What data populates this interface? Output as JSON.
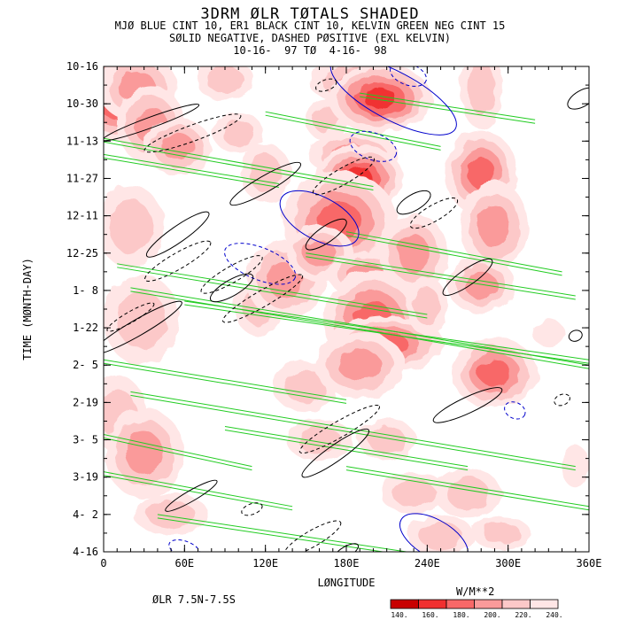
{
  "titles": {
    "line1": "3DRM ØLR TØTALS SHADED",
    "line2": "MJØ BLUE CINT 10, ER1 BLACK CINT 10, KELVIN GREEN NEG CINT 15",
    "line3": "SØLID NEGATIVE, DASHED PØSITIVE (EXL KELVIN)",
    "line4": "10-16-  97 TØ  4-16-  98"
  },
  "footer": {
    "region": "ØLR 7.5N-7.5S",
    "units": "W/M**2"
  },
  "colorbar": {
    "labels": [
      "140.",
      "160.",
      "180.",
      "200.",
      "220.",
      "240."
    ],
    "colors": [
      "#c80000",
      "#f03030",
      "#f86868",
      "#fa9a9a",
      "#fcc8c8",
      "#ffe6e6"
    ]
  },
  "chart_data": {
    "type": "heatmap",
    "title": "3DRM ØLR TØTALS SHADED",
    "xlabel": "LØNGITUDE",
    "ylabel": "TIME (MØNTH-DAY)",
    "x_ticks": [
      "0",
      "60E",
      "120E",
      "180E",
      "240E",
      "300E",
      "360E"
    ],
    "y_ticks": [
      "10-16",
      "10-30",
      "11-13",
      "11-27",
      "12-11",
      "12-25",
      "1- 8",
      "1-22",
      "2- 5",
      "2-19",
      "3- 5",
      "3-19",
      "4- 2",
      "4-16"
    ],
    "xlim": [
      0,
      360
    ],
    "ylim": [
      "10-16-97",
      "4-16-98"
    ],
    "shading_levels": [
      140,
      160,
      180,
      200,
      220,
      240
    ],
    "shading_colors": [
      "#c80000",
      "#f03030",
      "#f86868",
      "#fa9a9a",
      "#fcc8c8",
      "#ffe6e6"
    ],
    "contours": {
      "MJO": {
        "color": "#0000cc",
        "cint": 10
      },
      "ER1": {
        "color": "#000000",
        "cint": 10
      },
      "Kelvin": {
        "color": "#22cc22",
        "cint": 15,
        "sign": "negative"
      }
    },
    "blobs": [
      {
        "lon": 10,
        "day": 12,
        "rx": 10,
        "ry": 10,
        "level": 1
      },
      {
        "lon": 25,
        "day": 8,
        "rx": 14,
        "ry": 12,
        "level": 3
      },
      {
        "lon": 35,
        "day": 22,
        "rx": 12,
        "ry": 14,
        "level": 3
      },
      {
        "lon": 55,
        "day": 30,
        "rx": 12,
        "ry": 10,
        "level": 3
      },
      {
        "lon": 20,
        "day": 60,
        "rx": 16,
        "ry": 20,
        "level": 4
      },
      {
        "lon": 28,
        "day": 95,
        "rx": 18,
        "ry": 22,
        "level": 4
      },
      {
        "lon": 10,
        "day": 130,
        "rx": 14,
        "ry": 18,
        "level": 4
      },
      {
        "lon": 30,
        "day": 145,
        "rx": 14,
        "ry": 16,
        "level": 3
      },
      {
        "lon": 50,
        "day": 168,
        "rx": 18,
        "ry": 10,
        "level": 4
      },
      {
        "lon": 90,
        "day": 5,
        "rx": 14,
        "ry": 10,
        "level": 4
      },
      {
        "lon": 100,
        "day": 25,
        "rx": 12,
        "ry": 10,
        "level": 4
      },
      {
        "lon": 120,
        "day": 40,
        "rx": 12,
        "ry": 14,
        "level": 4
      },
      {
        "lon": 115,
        "day": 90,
        "rx": 12,
        "ry": 14,
        "level": 4
      },
      {
        "lon": 135,
        "day": 80,
        "rx": 14,
        "ry": 14,
        "level": 3
      },
      {
        "lon": 150,
        "day": 55,
        "rx": 10,
        "ry": 12,
        "level": 4
      },
      {
        "lon": 165,
        "day": 20,
        "rx": 10,
        "ry": 10,
        "level": 4
      },
      {
        "lon": 150,
        "day": 120,
        "rx": 16,
        "ry": 12,
        "level": 4
      },
      {
        "lon": 160,
        "day": 140,
        "rx": 16,
        "ry": 10,
        "level": 4
      },
      {
        "lon": 190,
        "day": 6,
        "rx": 18,
        "ry": 8,
        "level": 3
      },
      {
        "lon": 205,
        "day": 12,
        "rx": 12,
        "ry": 8,
        "level": 1
      },
      {
        "lon": 185,
        "day": 33,
        "rx": 16,
        "ry": 8,
        "level": 3
      },
      {
        "lon": 190,
        "day": 42,
        "rx": 10,
        "ry": 8,
        "level": 1
      },
      {
        "lon": 175,
        "day": 58,
        "rx": 16,
        "ry": 14,
        "level": 2
      },
      {
        "lon": 160,
        "day": 70,
        "rx": 12,
        "ry": 10,
        "level": 3
      },
      {
        "lon": 195,
        "day": 78,
        "rx": 14,
        "ry": 8,
        "level": 3
      },
      {
        "lon": 200,
        "day": 95,
        "rx": 14,
        "ry": 14,
        "level": 2
      },
      {
        "lon": 210,
        "day": 104,
        "rx": 16,
        "ry": 8,
        "level": 2
      },
      {
        "lon": 190,
        "day": 112,
        "rx": 16,
        "ry": 12,
        "level": 3
      },
      {
        "lon": 230,
        "day": 70,
        "rx": 12,
        "ry": 14,
        "level": 3
      },
      {
        "lon": 240,
        "day": 90,
        "rx": 10,
        "ry": 14,
        "level": 4
      },
      {
        "lon": 210,
        "day": 140,
        "rx": 14,
        "ry": 10,
        "level": 4
      },
      {
        "lon": 230,
        "day": 160,
        "rx": 16,
        "ry": 10,
        "level": 4
      },
      {
        "lon": 250,
        "day": 176,
        "rx": 16,
        "ry": 10,
        "level": 4
      },
      {
        "lon": 280,
        "day": 8,
        "rx": 10,
        "ry": 20,
        "level": 4
      },
      {
        "lon": 280,
        "day": 40,
        "rx": 10,
        "ry": 12,
        "level": 2
      },
      {
        "lon": 290,
        "day": 60,
        "rx": 12,
        "ry": 16,
        "level": 3
      },
      {
        "lon": 280,
        "day": 82,
        "rx": 12,
        "ry": 10,
        "level": 3
      },
      {
        "lon": 290,
        "day": 115,
        "rx": 12,
        "ry": 10,
        "level": 2
      },
      {
        "lon": 270,
        "day": 160,
        "rx": 16,
        "ry": 12,
        "level": 4
      },
      {
        "lon": 295,
        "day": 175,
        "rx": 14,
        "ry": 8,
        "level": 4
      },
      {
        "lon": 330,
        "day": 100,
        "rx": 12,
        "ry": 10,
        "level": 5
      },
      {
        "lon": 350,
        "day": 150,
        "rx": 10,
        "ry": 16,
        "level": 5
      }
    ],
    "ellipses": [
      {
        "group": "MJO",
        "lon": 215,
        "day": 11,
        "rx": 52,
        "ry": 9,
        "angle": 28,
        "dashed": false
      },
      {
        "group": "MJO",
        "lon": 160,
        "day": 57,
        "rx": 32,
        "ry": 8,
        "angle": 28,
        "dashed": false
      },
      {
        "group": "MJO",
        "lon": 245,
        "day": 177,
        "rx": 28,
        "ry": 7,
        "angle": 30,
        "dashed": false
      },
      {
        "group": "MJO",
        "lon": 226,
        "day": 3,
        "rx": 14,
        "ry": 4,
        "angle": 20,
        "dashed": true
      },
      {
        "group": "MJO",
        "lon": 200,
        "day": 30,
        "rx": 18,
        "ry": 5,
        "angle": 20,
        "dashed": true
      },
      {
        "group": "MJO",
        "lon": 116,
        "day": 74,
        "rx": 28,
        "ry": 6,
        "angle": 22,
        "dashed": true
      },
      {
        "group": "MJO",
        "lon": 305,
        "day": 129,
        "rx": 8,
        "ry": 3,
        "angle": 25,
        "dashed": true
      },
      {
        "group": "MJO",
        "lon": 60,
        "day": 181,
        "rx": 12,
        "ry": 3,
        "angle": 20,
        "dashed": true
      },
      {
        "group": "ER1",
        "lon": 120,
        "day": 44,
        "rx": 30,
        "ry": 3,
        "angle": -30,
        "dashed": false
      },
      {
        "group": "ER1",
        "lon": 55,
        "day": 63,
        "rx": 28,
        "ry": 3,
        "angle": -35,
        "dashed": false
      },
      {
        "group": "ER1",
        "lon": 165,
        "day": 63,
        "rx": 18,
        "ry": 3,
        "angle": -35,
        "dashed": false
      },
      {
        "group": "ER1",
        "lon": 230,
        "day": 51,
        "rx": 14,
        "ry": 3,
        "angle": -30,
        "dashed": false
      },
      {
        "group": "ER1",
        "lon": 270,
        "day": 79,
        "rx": 22,
        "ry": 3,
        "angle": -35,
        "dashed": false
      },
      {
        "group": "ER1",
        "lon": 95,
        "day": 83,
        "rx": 18,
        "ry": 3,
        "angle": -30,
        "dashed": false
      },
      {
        "group": "ER1",
        "lon": 25,
        "day": 98,
        "rx": 38,
        "ry": 3,
        "angle": -30,
        "dashed": false
      },
      {
        "group": "ER1",
        "lon": 270,
        "day": 127,
        "rx": 28,
        "ry": 3,
        "angle": -25,
        "dashed": false
      },
      {
        "group": "ER1",
        "lon": 172,
        "day": 145,
        "rx": 30,
        "ry": 3,
        "angle": -35,
        "dashed": false
      },
      {
        "group": "ER1",
        "lon": 35,
        "day": 21,
        "rx": 38,
        "ry": 2,
        "angle": -20,
        "dashed": false
      },
      {
        "group": "ER1",
        "lon": 355,
        "day": 12,
        "rx": 12,
        "ry": 3,
        "angle": -30,
        "dashed": false
      },
      {
        "group": "ER1",
        "lon": 350,
        "day": 101,
        "rx": 5,
        "ry": 2,
        "angle": -20,
        "dashed": false
      },
      {
        "group": "ER1",
        "lon": 65,
        "day": 161,
        "rx": 22,
        "ry": 2,
        "angle": -30,
        "dashed": false
      },
      {
        "group": "ER1",
        "lon": 180,
        "day": 182,
        "rx": 10,
        "ry": 2,
        "angle": -30,
        "dashed": false
      },
      {
        "group": "ER1",
        "lon": 66,
        "day": 25,
        "rx": 38,
        "ry": 3,
        "angle": -20,
        "dashed": true
      },
      {
        "group": "ER1",
        "lon": 178,
        "day": 41,
        "rx": 26,
        "ry": 3,
        "angle": -30,
        "dashed": true
      },
      {
        "group": "ER1",
        "lon": 118,
        "day": 87,
        "rx": 34,
        "ry": 3,
        "angle": -30,
        "dashed": true
      },
      {
        "group": "ER1",
        "lon": 95,
        "day": 78,
        "rx": 26,
        "ry": 3,
        "angle": -30,
        "dashed": true
      },
      {
        "group": "ER1",
        "lon": 175,
        "day": 136,
        "rx": 34,
        "ry": 3,
        "angle": -30,
        "dashed": true
      },
      {
        "group": "ER1",
        "lon": 55,
        "day": 73,
        "rx": 28,
        "ry": 3,
        "angle": -30,
        "dashed": true
      },
      {
        "group": "ER1",
        "lon": 155,
        "day": 177,
        "rx": 24,
        "ry": 3,
        "angle": -30,
        "dashed": true
      },
      {
        "group": "ER1",
        "lon": 245,
        "day": 55,
        "rx": 20,
        "ry": 3,
        "angle": -30,
        "dashed": true
      },
      {
        "group": "ER1",
        "lon": 165,
        "day": 7,
        "rx": 8,
        "ry": 2,
        "angle": -20,
        "dashed": true
      },
      {
        "group": "ER1",
        "lon": 20,
        "day": 94,
        "rx": 20,
        "ry": 2,
        "angle": -30,
        "dashed": true
      },
      {
        "group": "ER1",
        "lon": 110,
        "day": 166,
        "rx": 8,
        "ry": 2,
        "angle": -20,
        "dashed": true
      },
      {
        "group": "ER1",
        "lon": 340,
        "day": 125,
        "rx": 6,
        "ry": 2,
        "angle": -20,
        "dashed": true
      }
    ],
    "kelvin_bands": [
      {
        "lon0": 0,
        "day0": 27,
        "lon1": 200,
        "day1": 45
      },
      {
        "lon0": 0,
        "day0": 33,
        "lon1": 130,
        "day1": 44
      },
      {
        "lon0": 10,
        "day0": 74,
        "lon1": 240,
        "day1": 93
      },
      {
        "lon0": 20,
        "day0": 83,
        "lon1": 200,
        "day1": 98
      },
      {
        "lon0": 60,
        "day0": 88,
        "lon1": 360,
        "day1": 110
      },
      {
        "lon0": 0,
        "day0": 110,
        "lon1": 180,
        "day1": 125
      },
      {
        "lon0": 20,
        "day0": 122,
        "lon1": 350,
        "day1": 150
      },
      {
        "lon0": 0,
        "day0": 152,
        "lon1": 140,
        "day1": 165
      },
      {
        "lon0": 40,
        "day0": 168,
        "lon1": 330,
        "day1": 190
      },
      {
        "lon0": 150,
        "day0": 70,
        "lon1": 350,
        "day1": 86
      },
      {
        "lon0": 120,
        "day0": 17,
        "lon1": 250,
        "day1": 30
      },
      {
        "lon0": 180,
        "day0": 62,
        "lon1": 340,
        "day1": 77
      },
      {
        "lon0": 200,
        "day0": 98,
        "lon1": 360,
        "day1": 112
      },
      {
        "lon0": 90,
        "day0": 135,
        "lon1": 270,
        "day1": 150
      },
      {
        "lon0": 180,
        "day0": 150,
        "lon1": 360,
        "day1": 165
      },
      {
        "lon0": 0,
        "day0": 138,
        "lon1": 110,
        "day1": 150
      },
      {
        "lon0": 190,
        "day0": 10,
        "lon1": 320,
        "day1": 20
      }
    ]
  }
}
